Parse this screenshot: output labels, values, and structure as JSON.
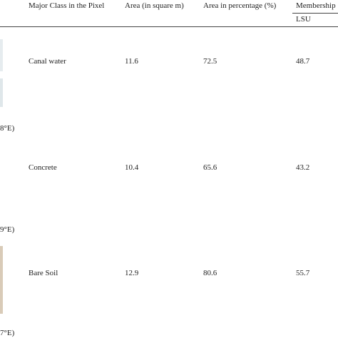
{
  "table": {
    "header": [
      "Major Class in the Pixel",
      "Area (in square m)",
      "Area in percentage (%)",
      "Membership"
    ],
    "subheader": "LSU",
    "rows": [
      [
        "Canal water",
        "11.6",
        "72.5",
        "48.7"
      ],
      [
        "Concrete",
        "10.4",
        "65.6",
        "43.2"
      ],
      [
        "Bare Soil",
        "12.9",
        "80.6",
        "55.7"
      ]
    ],
    "side_labels": [
      "8°E)",
      "9°E)",
      "7°E)"
    ]
  }
}
